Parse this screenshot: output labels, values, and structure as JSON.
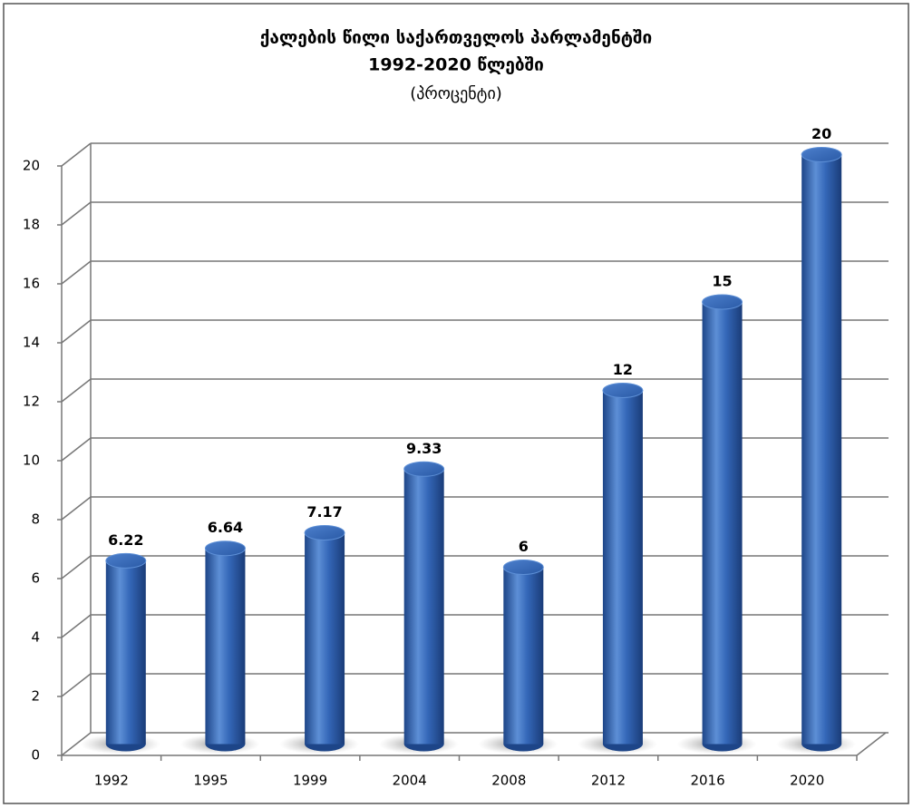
{
  "chart_data": {
    "type": "bar",
    "title": "ქალების წილი საქართველოს პარლამენტში",
    "subtitle": "1992-2020 წლებში",
    "unit_note": "(პროცენტი)",
    "categories": [
      "1992",
      "1995",
      "1999",
      "2004",
      "2008",
      "2012",
      "2016",
      "2020"
    ],
    "values": [
      6.22,
      6.64,
      7.17,
      9.33,
      6,
      12,
      15,
      20
    ],
    "color": "#2f64b4",
    "ylim": [
      0,
      20
    ],
    "yticks": [
      0,
      2,
      4,
      6,
      8,
      10,
      12,
      14,
      16,
      18,
      20
    ],
    "grid": true
  }
}
